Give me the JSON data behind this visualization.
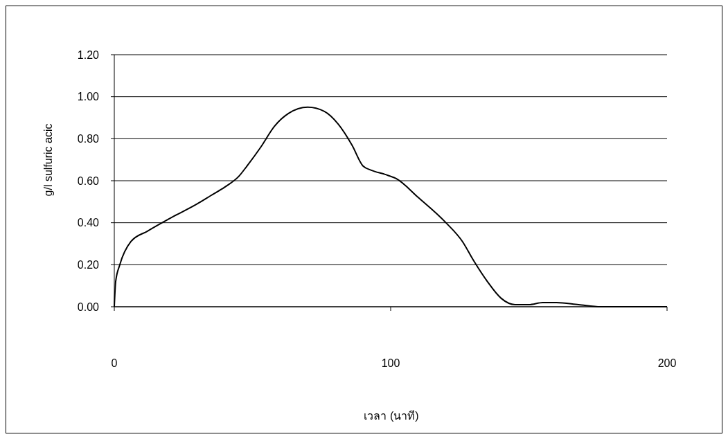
{
  "chart_data": {
    "type": "line",
    "xlabel": "เวลา (นาที)",
    "ylabel": "g/l sulfuric acic",
    "xlim": [
      0,
      200
    ],
    "xticks": [
      0,
      100,
      200
    ],
    "ylim": [
      0,
      1.2
    ],
    "yticks": [
      {
        "value": 0,
        "label": "0.00"
      },
      {
        "value": 0.2,
        "label": "0.20"
      },
      {
        "value": 0.4,
        "label": "0.40"
      },
      {
        "value": 0.6,
        "label": "0.60"
      },
      {
        "value": 0.8,
        "label": "0.80"
      },
      {
        "value": 1,
        "label": "1.00"
      },
      {
        "value": 1.2,
        "label": "1.20"
      }
    ],
    "grid": "y",
    "marker": "none",
    "line_style": "solid",
    "series": [
      {
        "color": "#000000",
        "x": [
          0,
          0.5,
          2,
          6,
          12,
          20,
          30,
          35,
          40,
          45,
          48,
          53,
          58,
          63,
          70,
          76,
          81,
          86,
          90,
          93,
          98,
          102,
          110,
          120,
          126,
          130,
          135,
          140,
          145,
          150,
          155,
          160,
          168,
          176,
          200
        ],
        "values": [
          0,
          0.12,
          0.2,
          0.31,
          0.36,
          0.42,
          0.49,
          0.53,
          0.57,
          0.62,
          0.67,
          0.76,
          0.86,
          0.92,
          0.95,
          0.93,
          0.87,
          0.77,
          0.67,
          0.65,
          0.63,
          0.61,
          0.52,
          0.4,
          0.31,
          0.22,
          0.12,
          0.04,
          0.01,
          0.01,
          0.02,
          0.02,
          0.01,
          0,
          0
        ]
      }
    ]
  }
}
